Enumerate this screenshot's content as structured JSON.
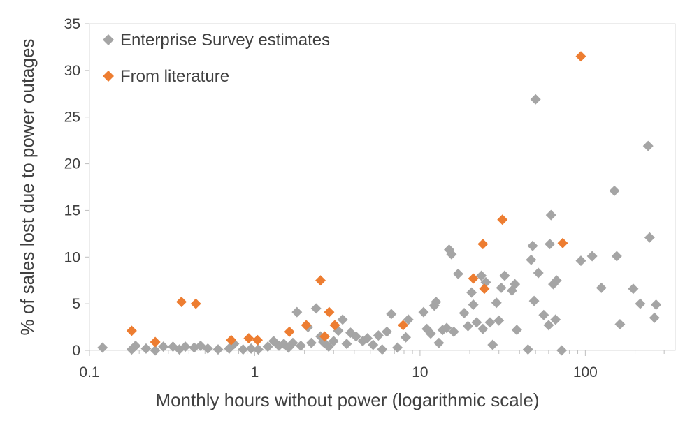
{
  "chart_data": {
    "type": "scatter",
    "title": "",
    "xlabel": "Monthly hours without power (logarithmic scale)",
    "ylabel": "% of sales lost due to power outages",
    "x_scale": "log",
    "xlim": [
      0.1,
      350
    ],
    "ylim": [
      0,
      35
    ],
    "x_ticks": [
      0.1,
      1,
      10,
      100
    ],
    "x_tick_labels": [
      "0.1",
      "1",
      "10",
      "100"
    ],
    "y_ticks": [
      0,
      5,
      10,
      15,
      20,
      25,
      30,
      35
    ],
    "y_tick_labels": [
      "0",
      "5",
      "10",
      "15",
      "20",
      "25",
      "30",
      "35"
    ],
    "grid": false,
    "legend": "top-left",
    "marker": "diamond",
    "series": [
      {
        "name": "Enterprise Survey estimates",
        "color": "#a5a5a5",
        "points": [
          [
            0.12,
            0.3
          ],
          [
            0.18,
            0.1
          ],
          [
            0.19,
            0.5
          ],
          [
            0.22,
            0.2
          ],
          [
            0.25,
            0.0
          ],
          [
            0.28,
            0.4
          ],
          [
            0.32,
            0.4
          ],
          [
            0.35,
            0.1
          ],
          [
            0.38,
            0.4
          ],
          [
            0.43,
            0.3
          ],
          [
            0.47,
            0.5
          ],
          [
            0.52,
            0.2
          ],
          [
            0.6,
            0.1
          ],
          [
            0.7,
            0.2
          ],
          [
            0.75,
            0.7
          ],
          [
            0.85,
            0.1
          ],
          [
            0.95,
            0.2
          ],
          [
            1.05,
            0.1
          ],
          [
            1.2,
            0.4
          ],
          [
            1.3,
            1.0
          ],
          [
            1.4,
            0.5
          ],
          [
            1.5,
            0.7
          ],
          [
            1.6,
            0.3
          ],
          [
            1.7,
            0.8
          ],
          [
            1.8,
            4.1
          ],
          [
            1.9,
            0.5
          ],
          [
            2.1,
            2.5
          ],
          [
            2.2,
            0.8
          ],
          [
            2.35,
            4.5
          ],
          [
            2.5,
            1.5
          ],
          [
            2.6,
            0.9
          ],
          [
            2.8,
            0.4
          ],
          [
            3.0,
            1.0
          ],
          [
            3.2,
            2.1
          ],
          [
            3.4,
            3.3
          ],
          [
            3.6,
            0.7
          ],
          [
            3.8,
            1.9
          ],
          [
            4.1,
            1.5
          ],
          [
            4.5,
            1.0
          ],
          [
            4.8,
            1.3
          ],
          [
            5.2,
            0.6
          ],
          [
            5.6,
            1.6
          ],
          [
            5.9,
            0.1
          ],
          [
            6.3,
            2.0
          ],
          [
            6.7,
            3.9
          ],
          [
            7.3,
            0.3
          ],
          [
            8.2,
            1.4
          ],
          [
            8.5,
            3.3
          ],
          [
            10.5,
            4.1
          ],
          [
            11.0,
            2.3
          ],
          [
            11.6,
            1.8
          ],
          [
            12.2,
            4.8
          ],
          [
            12.5,
            5.2
          ],
          [
            13.0,
            0.8
          ],
          [
            13.7,
            2.2
          ],
          [
            14.5,
            2.4
          ],
          [
            15.0,
            10.8
          ],
          [
            15.5,
            10.3
          ],
          [
            16.0,
            2.0
          ],
          [
            17.0,
            8.2
          ],
          [
            18.5,
            4.0
          ],
          [
            19.5,
            2.6
          ],
          [
            20.5,
            6.2
          ],
          [
            21.0,
            4.9
          ],
          [
            22.0,
            3.0
          ],
          [
            23.5,
            8.0
          ],
          [
            24.0,
            2.3
          ],
          [
            25.0,
            7.3
          ],
          [
            26.5,
            3.0
          ],
          [
            27.5,
            0.6
          ],
          [
            29.0,
            5.1
          ],
          [
            30.0,
            3.2
          ],
          [
            31.0,
            6.7
          ],
          [
            32.5,
            8.0
          ],
          [
            36.0,
            6.4
          ],
          [
            37.5,
            7.1
          ],
          [
            38.5,
            2.2
          ],
          [
            45.0,
            0.1
          ],
          [
            47.0,
            9.7
          ],
          [
            48.0,
            11.2
          ],
          [
            49.0,
            5.3
          ],
          [
            50.0,
            26.9
          ],
          [
            52.0,
            8.3
          ],
          [
            56.0,
            3.8
          ],
          [
            60.0,
            2.7
          ],
          [
            61.0,
            11.4
          ],
          [
            62.0,
            14.5
          ],
          [
            64.0,
            7.1
          ],
          [
            66.0,
            3.3
          ],
          [
            67.0,
            7.5
          ],
          [
            72.0,
            0.0
          ],
          [
            94.0,
            9.6
          ],
          [
            110.0,
            10.1
          ],
          [
            125.0,
            6.7
          ],
          [
            150.0,
            17.1
          ],
          [
            155.0,
            10.1
          ],
          [
            162.0,
            2.8
          ],
          [
            195.0,
            6.6
          ],
          [
            215.0,
            5.0
          ],
          [
            240.0,
            21.9
          ],
          [
            245.0,
            12.1
          ],
          [
            262.0,
            3.5
          ],
          [
            268.0,
            4.9
          ]
        ]
      },
      {
        "name": "From literature",
        "color": "#ed7d31",
        "points": [
          [
            0.18,
            2.1
          ],
          [
            0.25,
            0.9
          ],
          [
            0.36,
            5.2
          ],
          [
            0.44,
            5.0
          ],
          [
            0.72,
            1.1
          ],
          [
            0.92,
            1.3
          ],
          [
            1.04,
            1.1
          ],
          [
            1.62,
            2.0
          ],
          [
            2.05,
            2.7
          ],
          [
            2.5,
            7.5
          ],
          [
            2.65,
            1.5
          ],
          [
            2.82,
            4.1
          ],
          [
            3.05,
            2.7
          ],
          [
            7.9,
            2.7
          ],
          [
            21.0,
            7.7
          ],
          [
            24.0,
            11.4
          ],
          [
            24.5,
            6.6
          ],
          [
            31.5,
            14.0
          ],
          [
            73.0,
            11.5
          ],
          [
            94.0,
            31.5
          ]
        ]
      }
    ]
  }
}
